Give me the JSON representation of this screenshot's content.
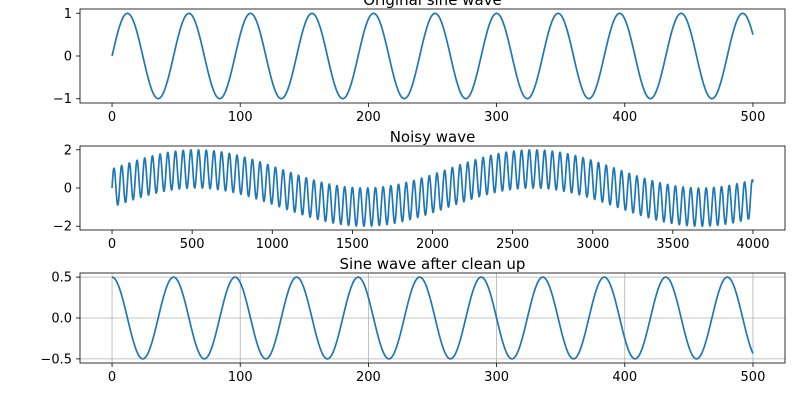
{
  "chart_data": [
    {
      "type": "line",
      "title": "Original sine wave",
      "series": [
        {
          "function": "sine",
          "amplitude": 1.0,
          "period": 48,
          "phase_deg": 0,
          "x_start": 0,
          "x_end": 500,
          "samples": 500,
          "color": "#1f77b4"
        }
      ],
      "xlim": [
        -25,
        525
      ],
      "ylim": [
        -1.1,
        1.1
      ],
      "xticks": [
        0,
        100,
        200,
        300,
        400,
        500
      ],
      "xtick_labels": [
        "0",
        "100",
        "200",
        "300",
        "400",
        "500"
      ],
      "yticks": [
        -1,
        0,
        1
      ],
      "ytick_labels": [
        "−1",
        "0",
        "1"
      ],
      "grid": false
    },
    {
      "type": "line",
      "title": "Noisy wave",
      "series": [
        {
          "function": "sine-sum",
          "components": [
            {
              "amplitude": 1.0,
              "period": 48
            },
            {
              "amplitude": 1.0,
              "period": 2100
            }
          ],
          "x_start": 0,
          "x_end": 4000,
          "samples": 4000,
          "color": "#1f77b4"
        }
      ],
      "xlim": [
        -200,
        4200
      ],
      "ylim": [
        -2.2,
        2.2
      ],
      "xticks": [
        0,
        500,
        1000,
        1500,
        2000,
        2500,
        3000,
        3500,
        4000
      ],
      "xtick_labels": [
        "0",
        "500",
        "1000",
        "1500",
        "2000",
        "2500",
        "3000",
        "3500",
        "4000"
      ],
      "yticks": [
        -2,
        0,
        2
      ],
      "ytick_labels": [
        "−2",
        "0",
        "2"
      ],
      "grid": false
    },
    {
      "type": "line",
      "title": "Sine wave after clean up",
      "series": [
        {
          "function": "cosine",
          "amplitude": 0.5,
          "period": 48,
          "phase_deg": 0,
          "x_start": 0,
          "x_end": 500,
          "samples": 500,
          "color": "#1f77b4"
        }
      ],
      "xlim": [
        -25,
        525
      ],
      "ylim": [
        -0.55,
        0.55
      ],
      "xticks": [
        0,
        100,
        200,
        300,
        400,
        500
      ],
      "xtick_labels": [
        "0",
        "100",
        "200",
        "300",
        "400",
        "500"
      ],
      "yticks": [
        -0.5,
        0.0,
        0.5
      ],
      "ytick_labels": [
        "−0.5",
        "0.0",
        "0.5"
      ],
      "grid": true
    }
  ]
}
